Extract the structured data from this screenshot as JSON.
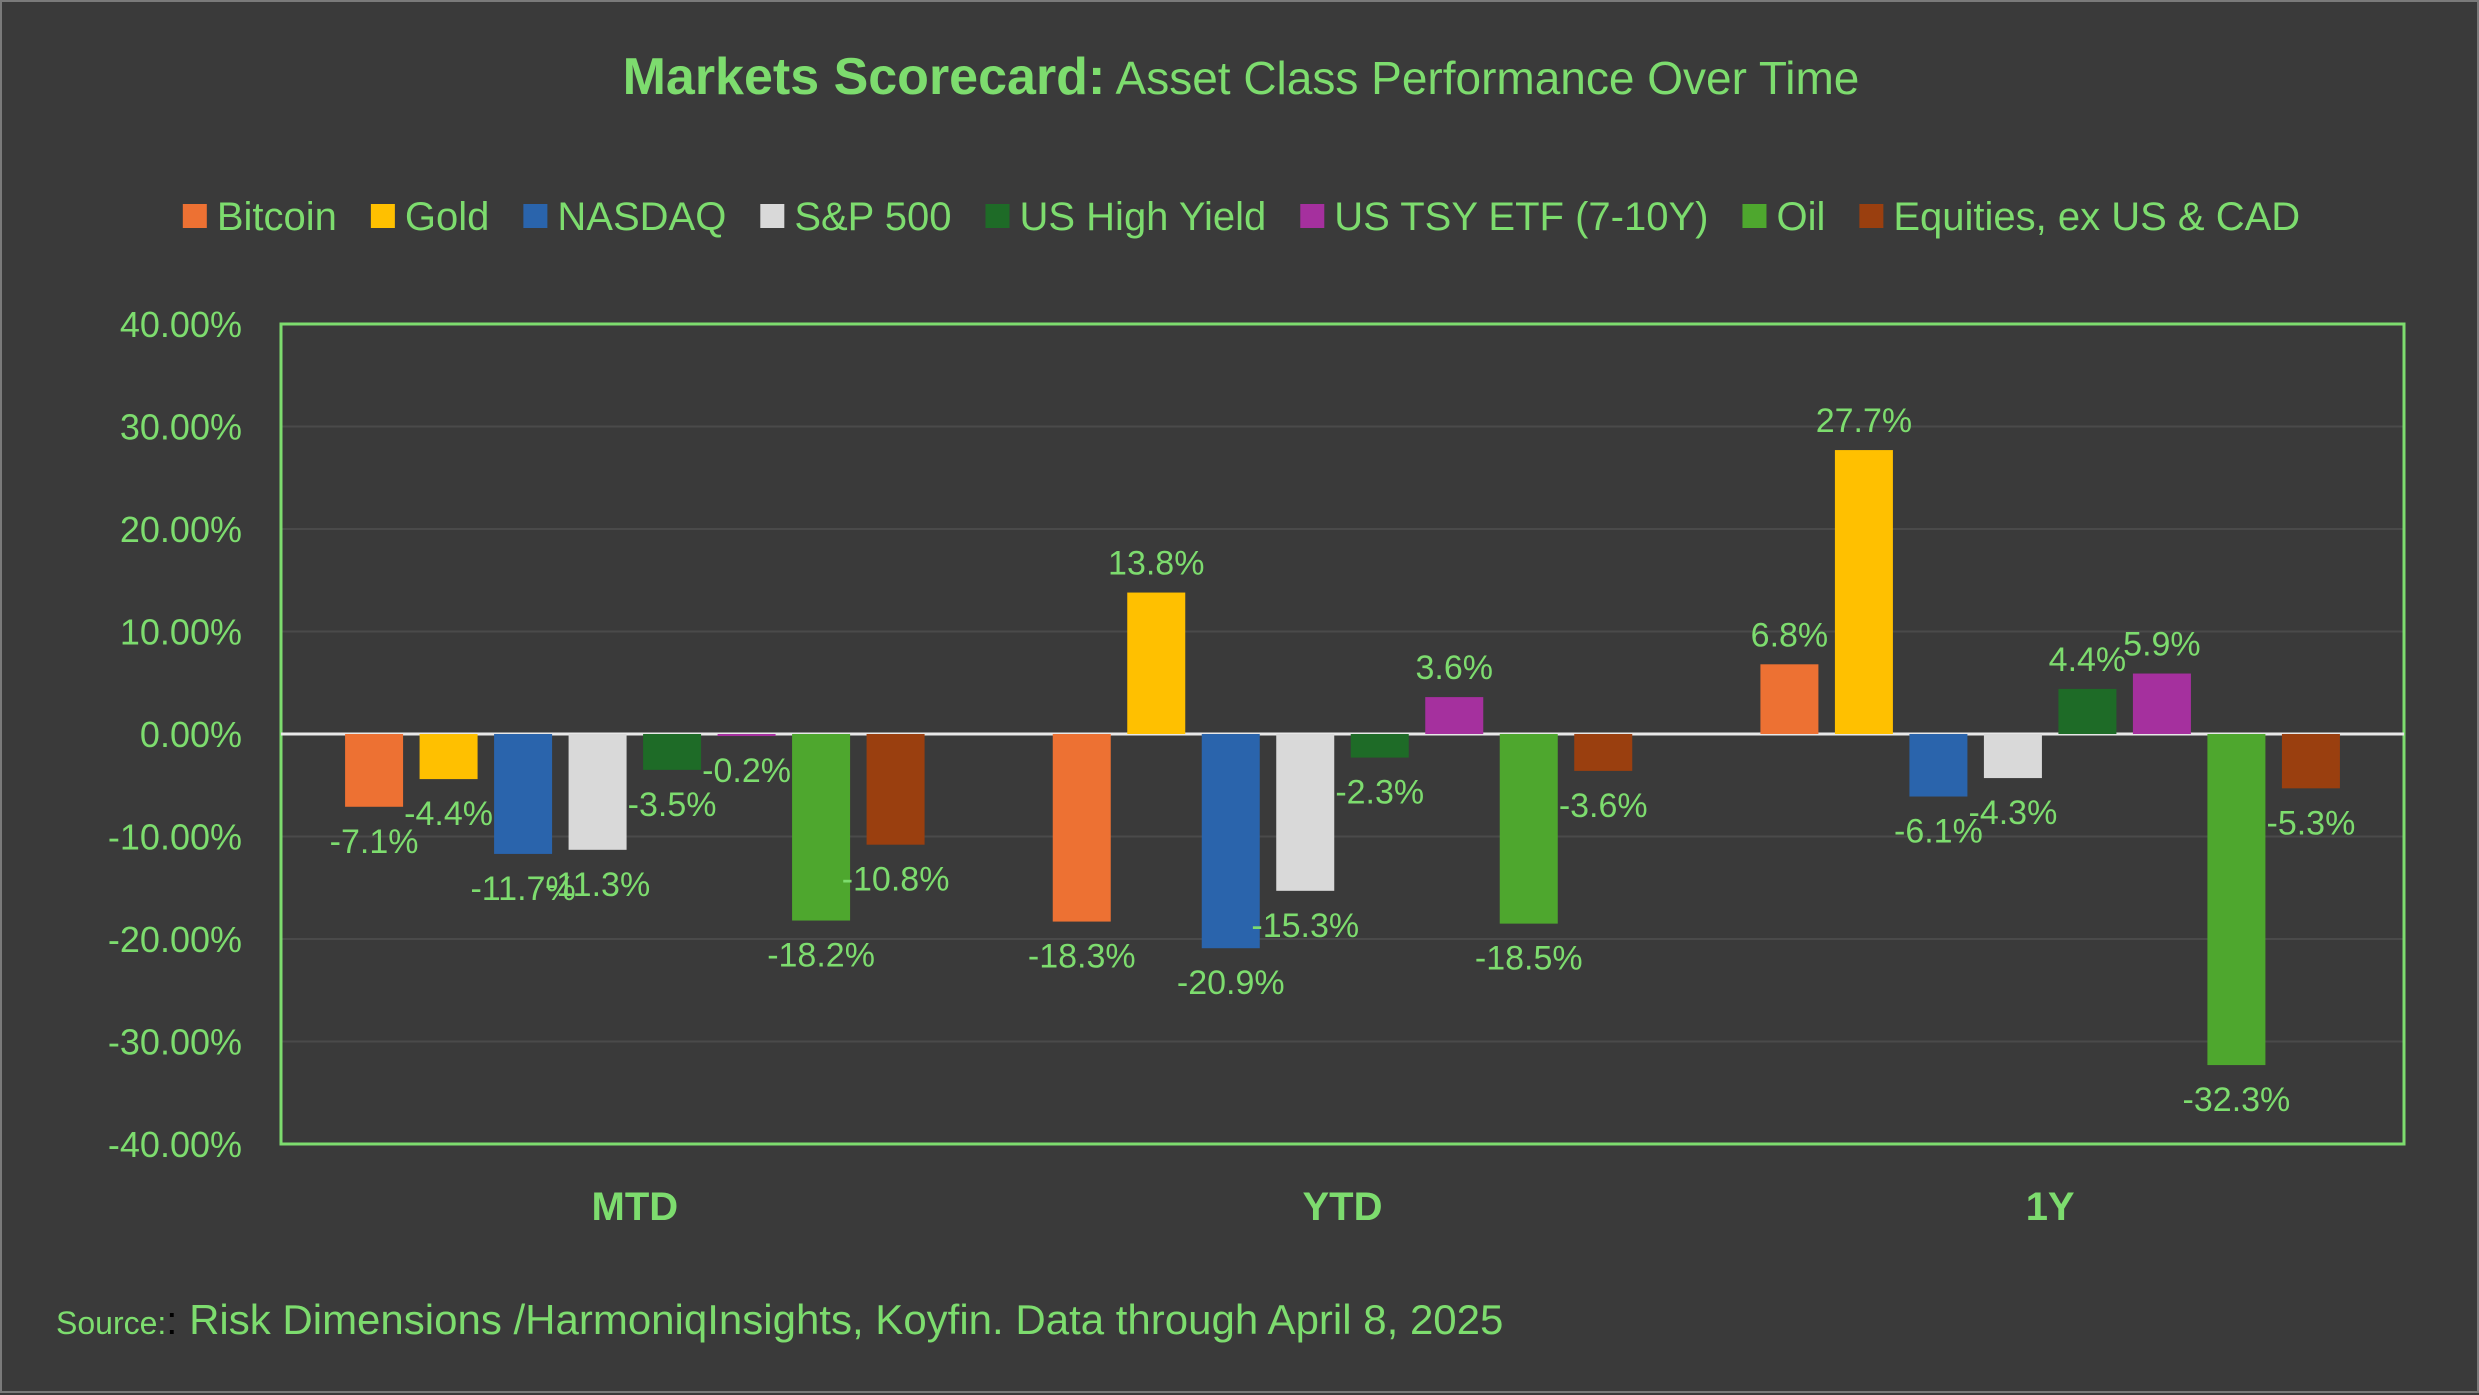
{
  "page": {
    "background": "#3a3a3a",
    "text_color": "#7ddc6e",
    "title_bold": "Markets Scorecard:",
    "title_rest": " Asset Class Performance Over Time",
    "source_label": "Source:",
    "source_colon": ":",
    "source_text": " Risk Dimensions /HarmoniqInsights, Koyfin. Data through April 8, 2025"
  },
  "chart_data": {
    "type": "bar",
    "title": "Markets Scorecard: Asset Class Performance Over Time",
    "categories": [
      "MTD",
      "YTD",
      "1Y"
    ],
    "legend_position": "top",
    "grid": true,
    "ylim": [
      -40,
      40
    ],
    "ytick_step": 10,
    "ytick_format": "0.00%",
    "series": [
      {
        "name": "Bitcoin",
        "color": "#ed7133",
        "values": [
          -7.1,
          -18.3,
          6.8
        ],
        "labels": [
          "-7.1%",
          "-18.3%",
          "6.8%"
        ]
      },
      {
        "name": "Gold",
        "color": "#ffc000",
        "values": [
          -4.4,
          13.8,
          27.7
        ],
        "labels": [
          "-4.4%",
          "13.8%",
          "27.7%"
        ]
      },
      {
        "name": "NASDAQ",
        "color": "#2a64ac",
        "values": [
          -11.7,
          -20.9,
          -6.1
        ],
        "labels": [
          "-11.7%",
          "-20.9%",
          "-6.1%"
        ]
      },
      {
        "name": "S&P 500",
        "color": "#d9d9d9",
        "values": [
          -11.3,
          -15.3,
          -4.3
        ],
        "labels": [
          "-11.3%",
          "-15.3%",
          "-4.3%"
        ]
      },
      {
        "name": "US High Yield",
        "color": "#1e6b27",
        "values": [
          -3.5,
          -2.3,
          4.4
        ],
        "labels": [
          "-3.5%",
          "-2.3%",
          "4.4%"
        ]
      },
      {
        "name": "US TSY ETF (7-10Y)",
        "color": "#a5309e",
        "values": [
          -0.2,
          3.6,
          5.9
        ],
        "labels": [
          "-0.2%",
          "3.6%",
          "5.9%"
        ]
      },
      {
        "name": "Oil",
        "color": "#4ea72e",
        "values": [
          -18.2,
          -18.5,
          -32.3
        ],
        "labels": [
          "-18.2%",
          "-18.5%",
          "-32.3%"
        ]
      },
      {
        "name": "Equities, ex US & CAD",
        "color": "#9a3f0f",
        "values": [
          -10.8,
          -3.6,
          -5.3
        ],
        "labels": [
          "-10.8%",
          "-3.6%",
          "-5.3%"
        ]
      }
    ]
  }
}
